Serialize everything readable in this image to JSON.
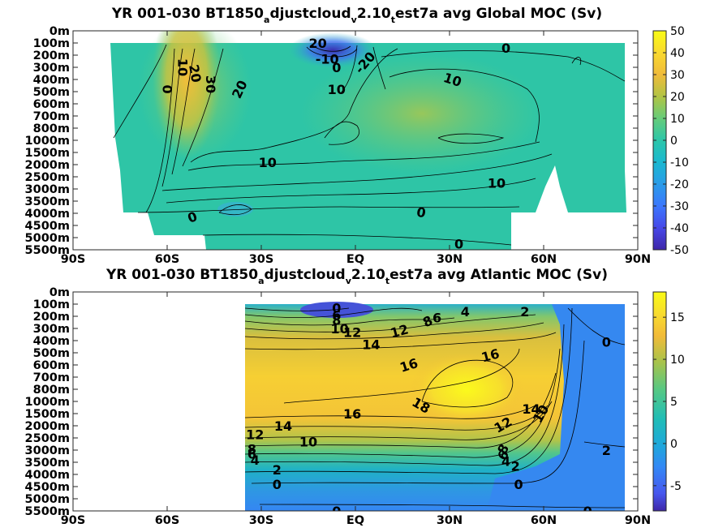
{
  "chart_data": [
    {
      "type": "heatmap",
      "title_parts": [
        "YR 001-030 BT1850",
        "a",
        "djustcloud",
        "v",
        "2.10",
        "t",
        "est7a avg  Global MOC (Sv)"
      ],
      "xlabel": "",
      "ylabel": "",
      "x_ticks": [
        "90S",
        "60S",
        "30S",
        "EQ",
        "30N",
        "60N",
        "90N"
      ],
      "x_range": [
        -90,
        90
      ],
      "y_ticks": [
        "0m",
        "100m",
        "200m",
        "300m",
        "400m",
        "500m",
        "600m",
        "700m",
        "800m",
        "1000m",
        "1500m",
        "2000m",
        "2500m",
        "3000m",
        "3500m",
        "4000m",
        "4500m",
        "5000m",
        "5500m"
      ],
      "colorbar": {
        "min": -50,
        "max": 50,
        "ticks": [
          "50",
          "40",
          "30",
          "20",
          "10",
          "0",
          "-10",
          "-20",
          "-30",
          "-40",
          "-50"
        ]
      },
      "contour_labels": [
        {
          "text": "20",
          "lat": -12,
          "depth_index": 1.0,
          "rot": 0
        },
        {
          "text": "-10",
          "lat": -9,
          "depth_index": 2.3,
          "rot": 0
        },
        {
          "text": "0",
          "lat": -6,
          "depth_index": 3.0,
          "rot": 0
        },
        {
          "text": "-20",
          "lat": 3,
          "depth_index": 2.6,
          "rot": -50
        },
        {
          "text": "0",
          "lat": 48,
          "depth_index": 1.4,
          "rot": 0
        },
        {
          "text": "20",
          "lat": -51,
          "depth_index": 3.5,
          "rot": 80
        },
        {
          "text": "10",
          "lat": -55,
          "depth_index": 3.0,
          "rot": 90
        },
        {
          "text": "0",
          "lat": -60,
          "depth_index": 4.8,
          "rot": -90
        },
        {
          "text": "30",
          "lat": -46,
          "depth_index": 4.4,
          "rot": 90
        },
        {
          "text": "20",
          "lat": -37,
          "depth_index": 4.8,
          "rot": -65
        },
        {
          "text": "10",
          "lat": -6,
          "depth_index": 4.8,
          "rot": 0
        },
        {
          "text": "10",
          "lat": 31,
          "depth_index": 4.0,
          "rot": 18
        },
        {
          "text": "10",
          "lat": -28,
          "depth_index": 10.8,
          "rot": 0
        },
        {
          "text": "10",
          "lat": 45,
          "depth_index": 12.5,
          "rot": 0
        },
        {
          "text": "0",
          "lat": -52,
          "depth_index": 15.3,
          "rot": -20
        },
        {
          "text": "0",
          "lat": 21,
          "depth_index": 14.9,
          "rot": 10
        },
        {
          "text": "0",
          "lat": 33,
          "depth_index": 17.5,
          "rot": 0
        }
      ]
    },
    {
      "type": "heatmap",
      "title_parts": [
        "YR 001-030 BT1850",
        "a",
        "djustcloud",
        "v",
        "2.10",
        "t",
        "est7a avg  Atlantic MOC (Sv)"
      ],
      "xlabel": "",
      "ylabel": "",
      "x_ticks": [
        "90S",
        "60S",
        "30S",
        "EQ",
        "30N",
        "60N",
        "90N"
      ],
      "x_range": [
        -90,
        90
      ],
      "y_ticks": [
        "0m",
        "100m",
        "200m",
        "300m",
        "400m",
        "500m",
        "600m",
        "700m",
        "800m",
        "1000m",
        "1500m",
        "2000m",
        "2500m",
        "3000m",
        "3500m",
        "4000m",
        "4500m",
        "5000m",
        "5500m"
      ],
      "colorbar": {
        "min": -8,
        "max": 18,
        "ticks": [
          "15",
          "10",
          "5",
          "0",
          "-5"
        ]
      },
      "contour_labels": [
        {
          "text": "0",
          "lat": -6,
          "depth_index": 1.3,
          "rot": 0
        },
        {
          "text": "6",
          "lat": -6,
          "depth_index": 1.9,
          "rot": 0
        },
        {
          "text": "8",
          "lat": -6,
          "depth_index": 2.3,
          "rot": 0
        },
        {
          "text": "10",
          "lat": -5,
          "depth_index": 3.0,
          "rot": 0
        },
        {
          "text": "12",
          "lat": -1,
          "depth_index": 3.3,
          "rot": 0
        },
        {
          "text": "12",
          "lat": 14,
          "depth_index": 3.2,
          "rot": -15
        },
        {
          "text": "8",
          "lat": 23,
          "depth_index": 2.4,
          "rot": -25
        },
        {
          "text": "6",
          "lat": 26,
          "depth_index": 2.1,
          "rot": 0
        },
        {
          "text": "4",
          "lat": 35,
          "depth_index": 1.6,
          "rot": 0
        },
        {
          "text": "2",
          "lat": 54,
          "depth_index": 1.6,
          "rot": 0
        },
        {
          "text": "0",
          "lat": 80,
          "depth_index": 4.1,
          "rot": 0
        },
        {
          "text": "14",
          "lat": 5,
          "depth_index": 4.3,
          "rot": 0
        },
        {
          "text": "16",
          "lat": 43,
          "depth_index": 5.2,
          "rot": -15
        },
        {
          "text": "16",
          "lat": 17,
          "depth_index": 6.0,
          "rot": -18
        },
        {
          "text": "18",
          "lat": 21,
          "depth_index": 9.3,
          "rot": 30
        },
        {
          "text": "16",
          "lat": -1,
          "depth_index": 10.0,
          "rot": 0
        },
        {
          "text": "14",
          "lat": 56,
          "depth_index": 9.6,
          "rot": 0
        },
        {
          "text": "10",
          "lat": 59,
          "depth_index": 10.0,
          "rot": -60
        },
        {
          "text": "12",
          "lat": 47,
          "depth_index": 10.9,
          "rot": -30
        },
        {
          "text": "14",
          "lat": -23,
          "depth_index": 11.0,
          "rot": 0
        },
        {
          "text": "12",
          "lat": -32,
          "depth_index": 11.7,
          "rot": 0
        },
        {
          "text": "10",
          "lat": -15,
          "depth_index": 12.3,
          "rot": 0
        },
        {
          "text": "8",
          "lat": -33,
          "depth_index": 12.9,
          "rot": 0
        },
        {
          "text": "8",
          "lat": 47,
          "depth_index": 12.9,
          "rot": -60
        },
        {
          "text": "6",
          "lat": -33,
          "depth_index": 13.3,
          "rot": 0
        },
        {
          "text": "6",
          "lat": 47,
          "depth_index": 13.4,
          "rot": -60
        },
        {
          "text": "4",
          "lat": -32,
          "depth_index": 13.8,
          "rot": 0
        },
        {
          "text": "4",
          "lat": 48,
          "depth_index": 13.9,
          "rot": 0
        },
        {
          "text": "2",
          "lat": -25,
          "depth_index": 14.6,
          "rot": 0
        },
        {
          "text": "2",
          "lat": 51,
          "depth_index": 14.3,
          "rot": 0
        },
        {
          "text": "2",
          "lat": 80,
          "depth_index": 13.0,
          "rot": 0
        },
        {
          "text": "0",
          "lat": -25,
          "depth_index": 15.8,
          "rot": 0
        },
        {
          "text": "0",
          "lat": 52,
          "depth_index": 15.8,
          "rot": 0
        },
        {
          "text": "0",
          "lat": -6,
          "depth_index": 18.0,
          "rot": 0
        },
        {
          "text": "0",
          "lat": 74,
          "depth_index": 18.0,
          "rot": 0
        }
      ]
    }
  ]
}
